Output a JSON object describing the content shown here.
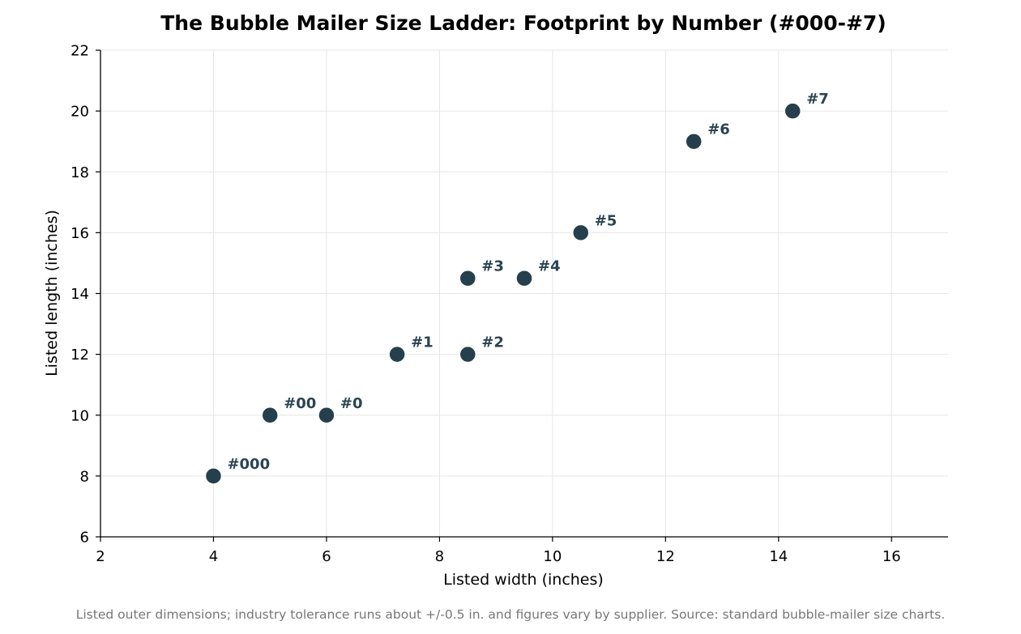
{
  "chart_data": {
    "type": "scatter",
    "title": "The Bubble Mailer Size Ladder: Footprint by Number (#000-#7)",
    "xlabel": "Listed width (inches)",
    "ylabel": "Listed length (inches)",
    "xlim": [
      2,
      17
    ],
    "ylim": [
      6,
      22
    ],
    "xticks": [
      2,
      4,
      6,
      8,
      10,
      12,
      14,
      16
    ],
    "yticks": [
      6,
      8,
      10,
      12,
      14,
      16,
      18,
      20,
      22
    ],
    "grid": true,
    "legend": "none",
    "marker_color": "#263f4c",
    "label_color": "#2a4452",
    "points": [
      {
        "label": "#000",
        "x": 4,
        "y": 8
      },
      {
        "label": "#00",
        "x": 5,
        "y": 10
      },
      {
        "label": "#0",
        "x": 6,
        "y": 10
      },
      {
        "label": "#1",
        "x": 7.25,
        "y": 12
      },
      {
        "label": "#2",
        "x": 8.5,
        "y": 12
      },
      {
        "label": "#3",
        "x": 8.5,
        "y": 14.5
      },
      {
        "label": "#4",
        "x": 9.5,
        "y": 14.5
      },
      {
        "label": "#5",
        "x": 10.5,
        "y": 16
      },
      {
        "label": "#6",
        "x": 12.5,
        "y": 19
      },
      {
        "label": "#7",
        "x": 14.25,
        "y": 20
      }
    ],
    "footnote": "Listed outer dimensions; industry tolerance runs about +/-0.5 in. and figures vary by supplier. Source: standard bubble-mailer size charts."
  }
}
